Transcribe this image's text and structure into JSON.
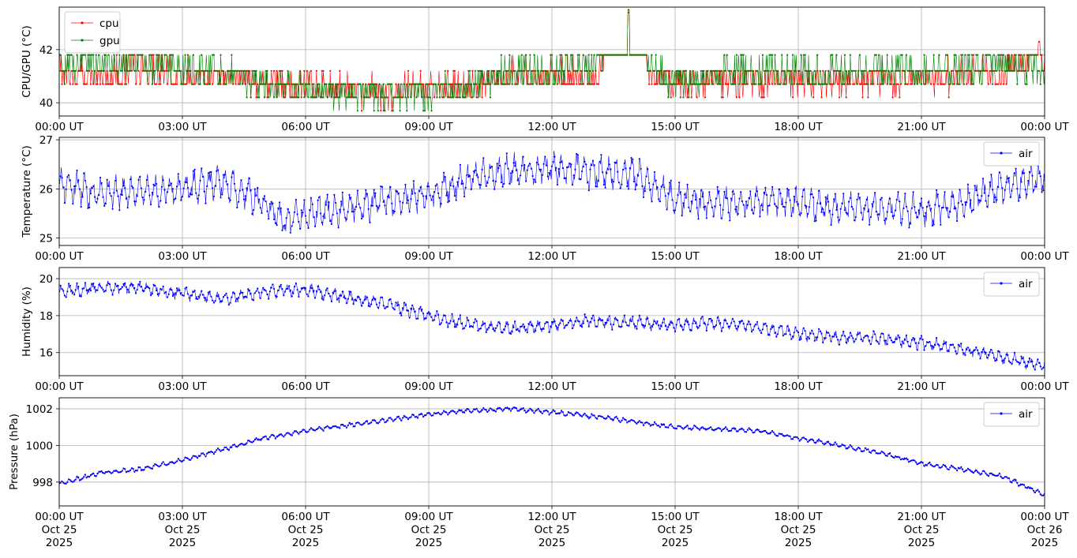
{
  "colors": {
    "cpu": "#ff0000",
    "gpu": "#008000",
    "air": "#0000ff",
    "grid": "#b0b0b0"
  },
  "chart_data": [
    {
      "type": "line",
      "ylabel": "CPU/GPU (°C)",
      "xlim": [
        "2025-10-25 00:00",
        "2025-10-26 00:00"
      ],
      "ylim": [
        39.5,
        43.6
      ],
      "yticks": [
        40,
        42
      ],
      "legend": "upper-left",
      "grid": true,
      "xtick_labels": [
        "00:00 UT",
        "03:00 UT",
        "06:00 UT",
        "09:00 UT",
        "12:00 UT",
        "15:00 UT",
        "18:00 UT",
        "21:00 UT",
        "00:00 UT"
      ],
      "series": [
        {
          "name": "cpu",
          "color": "#ff0000",
          "x": [
            "2025-10-25 00:00",
            "2025-10-25 01:00",
            "2025-10-25 02:00",
            "2025-10-25 03:00",
            "2025-10-25 04:00",
            "2025-10-25 05:00",
            "2025-10-25 06:00",
            "2025-10-25 07:00",
            "2025-10-25 08:00",
            "2025-10-25 09:00",
            "2025-10-25 10:00",
            "2025-10-25 11:00",
            "2025-10-25 12:00",
            "2025-10-25 13:00",
            "2025-10-25 13:52",
            "2025-10-25 14:30",
            "2025-10-25 15:00",
            "2025-10-25 16:00",
            "2025-10-25 17:00",
            "2025-10-25 18:00",
            "2025-10-25 19:00",
            "2025-10-25 20:00",
            "2025-10-25 21:00",
            "2025-10-25 22:00",
            "2025-10-25 23:00",
            "2025-10-25 23:52",
            "2025-10-26 00:00"
          ],
          "y": [
            41.2,
            41.0,
            41.2,
            41.0,
            41.1,
            40.8,
            40.6,
            40.5,
            40.4,
            40.5,
            40.6,
            41.0,
            41.0,
            41.0,
            43.4,
            40.9,
            40.8,
            40.8,
            40.9,
            40.9,
            40.8,
            40.9,
            40.9,
            41.0,
            41.1,
            42.3,
            41.2
          ]
        },
        {
          "name": "gpu",
          "color": "#008000",
          "x": [
            "2025-10-25 00:00",
            "2025-10-25 01:00",
            "2025-10-25 02:00",
            "2025-10-25 03:00",
            "2025-10-25 04:00",
            "2025-10-25 05:00",
            "2025-10-25 06:00",
            "2025-10-25 07:00",
            "2025-10-25 08:00",
            "2025-10-25 09:00",
            "2025-10-25 10:00",
            "2025-10-25 11:00",
            "2025-10-25 12:00",
            "2025-10-25 13:00",
            "2025-10-25 13:52",
            "2025-10-25 14:30",
            "2025-10-25 15:00",
            "2025-10-25 16:00",
            "2025-10-25 17:00",
            "2025-10-25 18:00",
            "2025-10-25 19:00",
            "2025-10-25 20:00",
            "2025-10-25 21:00",
            "2025-10-25 22:00",
            "2025-10-25 23:00",
            "2025-10-26 00:00"
          ],
          "y": [
            41.5,
            41.4,
            41.5,
            41.3,
            41.2,
            40.7,
            40.5,
            40.4,
            40.4,
            40.4,
            40.6,
            41.2,
            41.3,
            41.3,
            43.5,
            41.2,
            40.8,
            41.0,
            41.2,
            41.2,
            41.2,
            41.2,
            41.2,
            41.3,
            41.4,
            41.3
          ]
        }
      ]
    },
    {
      "type": "line",
      "ylabel": "Temperature (°C)",
      "xlim": [
        "2025-10-25 00:00",
        "2025-10-26 00:00"
      ],
      "ylim": [
        24.85,
        27.05
      ],
      "yticks": [
        25,
        26,
        27
      ],
      "legend": "upper-right",
      "grid": true,
      "xtick_labels": [
        "00:00 UT",
        "03:00 UT",
        "06:00 UT",
        "09:00 UT",
        "12:00 UT",
        "15:00 UT",
        "18:00 UT",
        "21:00 UT",
        "00:00 UT"
      ],
      "series": [
        {
          "name": "air",
          "color": "#0000ff",
          "x": [
            "2025-10-25 00:00",
            "2025-10-25 01:00",
            "2025-10-25 02:00",
            "2025-10-25 03:00",
            "2025-10-25 04:00",
            "2025-10-25 05:00",
            "2025-10-25 05:30",
            "2025-10-25 06:00",
            "2025-10-25 07:00",
            "2025-10-25 08:00",
            "2025-10-25 09:00",
            "2025-10-25 10:00",
            "2025-10-25 11:00",
            "2025-10-25 12:00",
            "2025-10-25 13:00",
            "2025-10-25 14:00",
            "2025-10-25 15:00",
            "2025-10-25 16:00",
            "2025-10-25 17:00",
            "2025-10-25 18:00",
            "2025-10-25 19:00",
            "2025-10-25 20:00",
            "2025-10-25 21:00",
            "2025-10-25 22:00",
            "2025-10-25 23:00",
            "2025-10-26 00:00"
          ],
          "y": [
            26.1,
            25.9,
            25.95,
            26.0,
            26.15,
            25.7,
            25.3,
            25.5,
            25.6,
            25.75,
            25.9,
            26.2,
            26.4,
            26.4,
            26.35,
            26.3,
            25.8,
            25.7,
            25.75,
            25.7,
            25.6,
            25.6,
            25.55,
            25.7,
            26.05,
            26.2
          ]
        }
      ]
    },
    {
      "type": "line",
      "ylabel": "Humidity (%)",
      "xlim": [
        "2025-10-25 00:00",
        "2025-10-26 00:00"
      ],
      "ylim": [
        14.75,
        20.6
      ],
      "yticks": [
        16,
        18,
        20
      ],
      "legend": "upper-right",
      "grid": true,
      "xtick_labels": [
        "00:00 UT",
        "03:00 UT",
        "06:00 UT",
        "09:00 UT",
        "12:00 UT",
        "15:00 UT",
        "18:00 UT",
        "21:00 UT",
        "00:00 UT"
      ],
      "series": [
        {
          "name": "air",
          "color": "#0000ff",
          "x": [
            "2025-10-25 00:00",
            "2025-10-25 01:00",
            "2025-10-25 02:00",
            "2025-10-25 03:00",
            "2025-10-25 04:00",
            "2025-10-25 05:00",
            "2025-10-25 06:00",
            "2025-10-25 07:00",
            "2025-10-25 08:00",
            "2025-10-25 09:00",
            "2025-10-25 10:00",
            "2025-10-25 11:00",
            "2025-10-25 12:00",
            "2025-10-25 13:00",
            "2025-10-25 14:00",
            "2025-10-25 15:00",
            "2025-10-25 16:00",
            "2025-10-25 17:00",
            "2025-10-25 18:00",
            "2025-10-25 19:00",
            "2025-10-25 20:00",
            "2025-10-25 21:00",
            "2025-10-25 22:00",
            "2025-10-25 23:00",
            "2025-10-26 00:00"
          ],
          "y": [
            19.3,
            19.5,
            19.5,
            19.2,
            18.9,
            19.3,
            19.4,
            19.0,
            18.6,
            18.0,
            17.5,
            17.3,
            17.5,
            17.7,
            17.6,
            17.5,
            17.6,
            17.4,
            17.0,
            16.8,
            16.8,
            16.5,
            16.2,
            15.7,
            15.3
          ]
        }
      ]
    },
    {
      "type": "line",
      "ylabel": "Pressure (hPa)",
      "xlim": [
        "2025-10-25 00:00",
        "2025-10-26 00:00"
      ],
      "ylim": [
        996.7,
        1002.6
      ],
      "yticks": [
        998,
        1000,
        1002
      ],
      "legend": "upper-right",
      "grid": true,
      "xtick_labels": [
        "00:00 UT\nOct 25\n2025",
        "03:00 UT\nOct 25\n2025",
        "06:00 UT\nOct 25\n2025",
        "09:00 UT\nOct 25\n2025",
        "12:00 UT\nOct 25\n2025",
        "15:00 UT\nOct 25\n2025",
        "18:00 UT\nOct 25\n2025",
        "21:00 UT\nOct 25\n2025",
        "00:00 UT\nOct 26\n2025"
      ],
      "series": [
        {
          "name": "air",
          "color": "#0000ff",
          "x": [
            "2025-10-25 00:00",
            "2025-10-25 01:00",
            "2025-10-25 02:00",
            "2025-10-25 03:00",
            "2025-10-25 04:00",
            "2025-10-25 05:00",
            "2025-10-25 06:00",
            "2025-10-25 07:00",
            "2025-10-25 08:00",
            "2025-10-25 09:00",
            "2025-10-25 10:00",
            "2025-10-25 11:00",
            "2025-10-25 12:00",
            "2025-10-25 13:00",
            "2025-10-25 14:00",
            "2025-10-25 15:00",
            "2025-10-25 16:00",
            "2025-10-25 17:00",
            "2025-10-25 18:00",
            "2025-10-25 19:00",
            "2025-10-25 20:00",
            "2025-10-25 21:00",
            "2025-10-25 22:00",
            "2025-10-25 23:00",
            "2025-10-26 00:00"
          ],
          "y": [
            997.9,
            998.5,
            998.7,
            999.2,
            999.8,
            1000.4,
            1000.8,
            1001.1,
            1001.4,
            1001.7,
            1001.9,
            1002.0,
            1001.8,
            1001.6,
            1001.3,
            1001.0,
            1000.9,
            1000.8,
            1000.4,
            1000.0,
            999.6,
            999.0,
            998.7,
            998.3,
            997.3
          ]
        }
      ]
    }
  ]
}
